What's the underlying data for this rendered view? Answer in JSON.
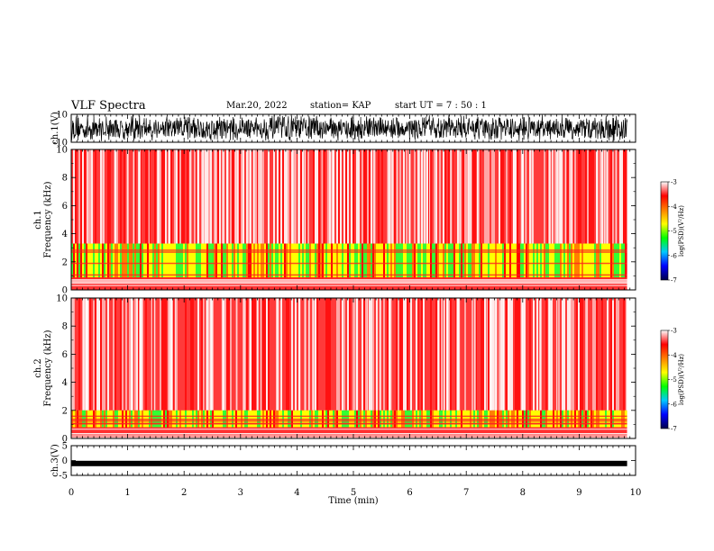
{
  "header": {
    "title": "VLF Spectra",
    "date": "Mar.20, 2022",
    "station": "station= KAP",
    "start": "start UT =  7 : 50 : 1"
  },
  "chart_data": [
    {
      "type": "line",
      "name": "ch1-waveform",
      "ylabel": "ch.1(V)",
      "ylim": [
        -10,
        10
      ],
      "yticks": [
        "10",
        "-10"
      ],
      "x_range_min": [
        0,
        9.85
      ],
      "description_values": "dense noise waveform spanning approximately full range"
    },
    {
      "type": "heatmap",
      "name": "ch1-spectrogram",
      "ylabel": "ch.1\nFrequency (kHz)",
      "ylabel_top": "ch.1",
      "ylabel_bottom": "Frequency  (kHz)",
      "ylim": [
        0,
        10
      ],
      "yticks": [
        "0",
        "2",
        "4",
        "6",
        "8",
        "10"
      ],
      "bands": [
        {
          "from_khz": 0,
          "to_khz": 0.8,
          "level": "red"
        },
        {
          "from_khz": 0.8,
          "to_khz": 3.3,
          "level": "yellow-green"
        },
        {
          "from_khz": 3.3,
          "to_khz": 10,
          "level": "red-white"
        }
      ]
    },
    {
      "type": "heatmap",
      "name": "ch2-spectrogram",
      "ylabel_top": "ch.2",
      "ylabel_bottom": "Frequency  (kHz)",
      "ylim": [
        0,
        10
      ],
      "yticks": [
        "0",
        "2",
        "4",
        "6",
        "8",
        "10"
      ],
      "bands": [
        {
          "from_khz": 0,
          "to_khz": 0.5,
          "level": "red"
        },
        {
          "from_khz": 0.5,
          "to_khz": 2.0,
          "level": "green"
        },
        {
          "from_khz": 2.0,
          "to_khz": 10,
          "level": "red-white"
        }
      ]
    },
    {
      "type": "line",
      "name": "ch3-waveform",
      "ylabel": "ch.3(V)",
      "ylim": [
        -5,
        5
      ],
      "yticks": [
        "5",
        "0",
        "-5"
      ],
      "values_level": -1.0
    }
  ],
  "xaxis": {
    "label": "Time  (min)",
    "ticks": [
      "0",
      "1",
      "2",
      "3",
      "4",
      "5",
      "6",
      "7",
      "8",
      "9",
      "10"
    ],
    "xlim": [
      0,
      10
    ],
    "data_end": 9.85
  },
  "colorbar": {
    "label": "log(PSD)(V²/Hz)",
    "ticks": [
      "-3",
      "-4",
      "-5",
      "-6",
      "-7"
    ],
    "range": [
      -7,
      -3
    ],
    "colors": [
      "#00004a",
      "#0000ff",
      "#00c8ff",
      "#00ff00",
      "#ffff00",
      "#ff8000",
      "#ff0000",
      "#ffffff"
    ]
  },
  "colors": {
    "background": "#ffffff",
    "axes": "#000000",
    "spectrum_red": "#ff1a1a",
    "spectrum_pink": "#ff8080",
    "spectrum_yellow": "#ffff00",
    "spectrum_green": "#33ff33"
  }
}
